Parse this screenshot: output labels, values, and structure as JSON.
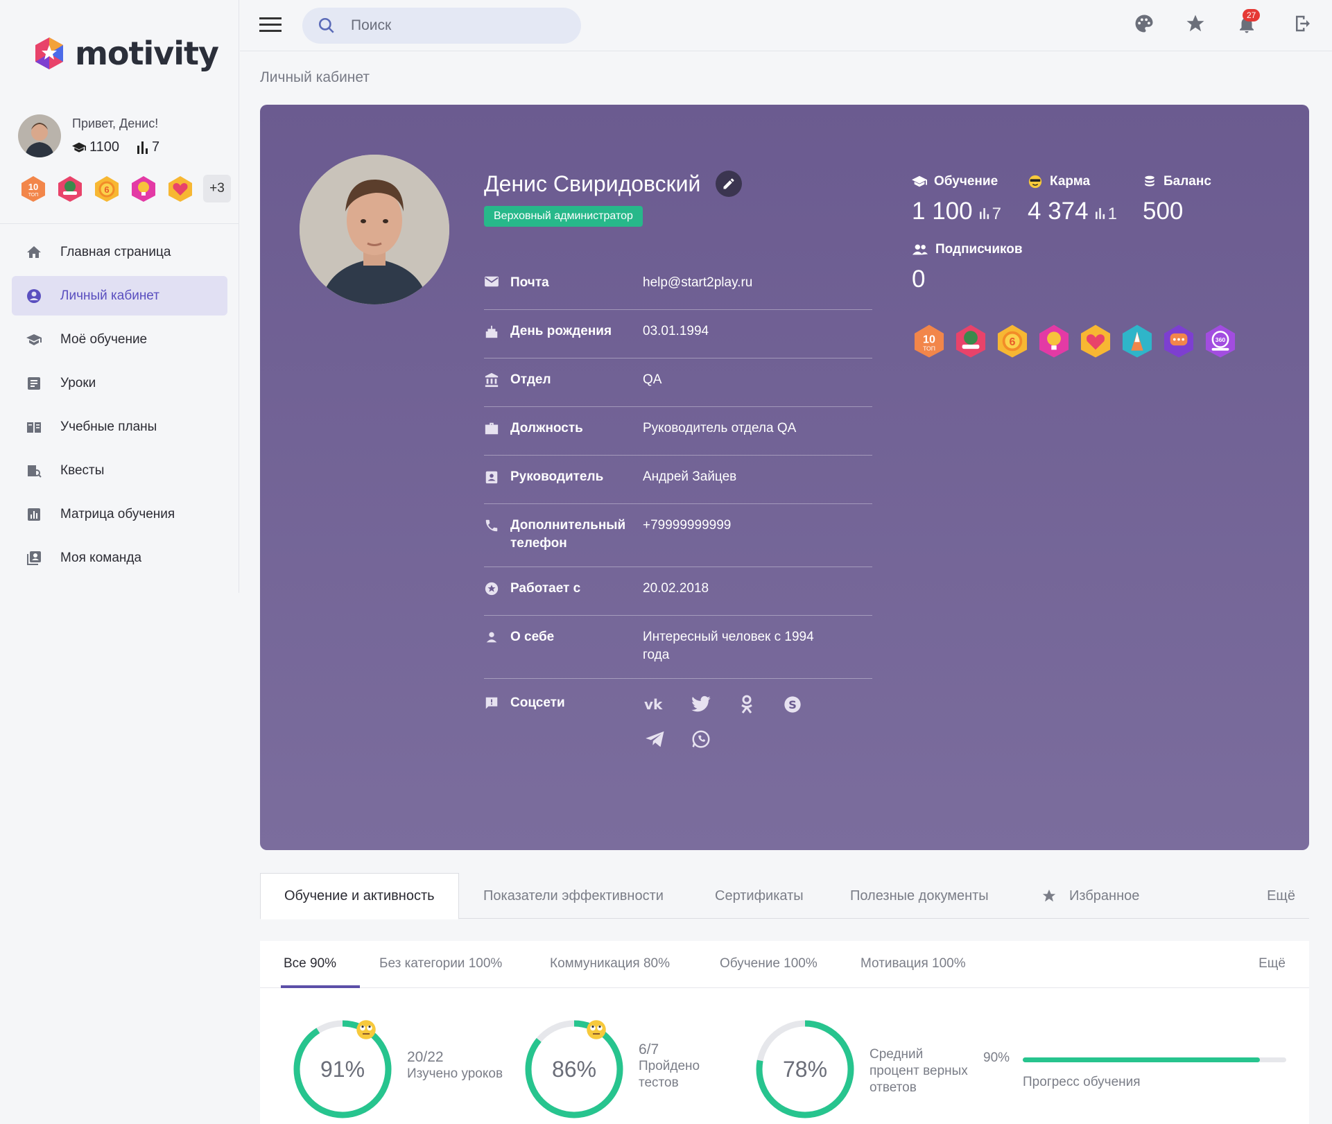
{
  "app": {
    "brand": "motivity"
  },
  "user": {
    "greeting": "Привет, Денис!",
    "points": "1100",
    "rank": "7",
    "more_badges": "+3"
  },
  "nav": [
    {
      "label": "Главная страница",
      "icon": "home-icon"
    },
    {
      "label": "Личный кабинет",
      "icon": "account-circle-icon",
      "active": true
    },
    {
      "label": "Моё обучение",
      "icon": "graduation-cap-icon"
    },
    {
      "label": "Уроки",
      "icon": "lesson-icon"
    },
    {
      "label": "Учебные планы",
      "icon": "book-icon"
    },
    {
      "label": "Квесты",
      "icon": "quest-map-icon"
    },
    {
      "label": "Матрица обучения",
      "icon": "bar-chart-icon"
    },
    {
      "label": "Моя команда",
      "icon": "team-icon"
    }
  ],
  "topbar": {
    "search_placeholder": "Поиск",
    "notifications": "27"
  },
  "breadcrumb": "Личный кабинет",
  "profile": {
    "name": "Денис Свиридовский",
    "role": "Верховный администратор",
    "fields": [
      {
        "label": "Почта",
        "value": "help@start2play.ru",
        "icon": "mail-icon"
      },
      {
        "label": "День рождения",
        "value": "03.01.1994",
        "icon": "cake-icon"
      },
      {
        "label": "Отдел",
        "value": "QA",
        "icon": "institution-icon"
      },
      {
        "label": "Должность",
        "value": "Руководитель отдела QA",
        "icon": "briefcase-icon"
      },
      {
        "label": "Руководитель",
        "value": "Андрей Зайцев",
        "icon": "contact-badge-icon"
      },
      {
        "label": "Дополнительный телефон",
        "value": "+79999999999",
        "icon": "phone-icon"
      },
      {
        "label": "Работает с",
        "value": "20.02.2018",
        "icon": "star-circle-icon"
      },
      {
        "label": "О себе",
        "value": "Интересный человек с 1994 года",
        "icon": "person-icon"
      }
    ],
    "socials_label": "Соцсети",
    "socials": [
      "vk-icon",
      "twitter-icon",
      "odnoklassniki-icon",
      "skype-icon",
      "telegram-icon",
      "whatsapp-icon"
    ],
    "stats": {
      "learning": {
        "label": "Обучение",
        "value": "1 100",
        "rank": "7"
      },
      "karma": {
        "label": "Карма",
        "value": "4 374",
        "rank": "1"
      },
      "balance": {
        "label": "Баланс",
        "value": "500"
      },
      "followers": {
        "label": "Подписчиков",
        "value": "0"
      }
    }
  },
  "tabs": [
    "Обучение и активность",
    "Показатели эффективности",
    "Сертификаты",
    "Полезные документы",
    "Избранное",
    "Ещё"
  ],
  "subtabs": [
    "Все 90%",
    "Без категории 100%",
    "Коммуникация 80%",
    "Обучение 100%",
    "Мотивация 100%",
    "Ещё"
  ],
  "metrics": [
    {
      "percent": 91,
      "percent_label": "91%",
      "count": "20/22",
      "caption": "Изучено уроков"
    },
    {
      "percent": 86,
      "percent_label": "86%",
      "count": "6/7",
      "caption": "Пройдено тестов"
    },
    {
      "percent": 78,
      "percent_label": "78%",
      "count": "",
      "caption": "Средний процент верных ответов"
    }
  ],
  "progress": {
    "value": 90,
    "label": "90%",
    "caption": "Прогресс обучения"
  },
  "colors": {
    "accent": "#5a4fbf",
    "card": "#6b5b90",
    "role_badge": "#27b88a",
    "ring": "#27c48e"
  }
}
